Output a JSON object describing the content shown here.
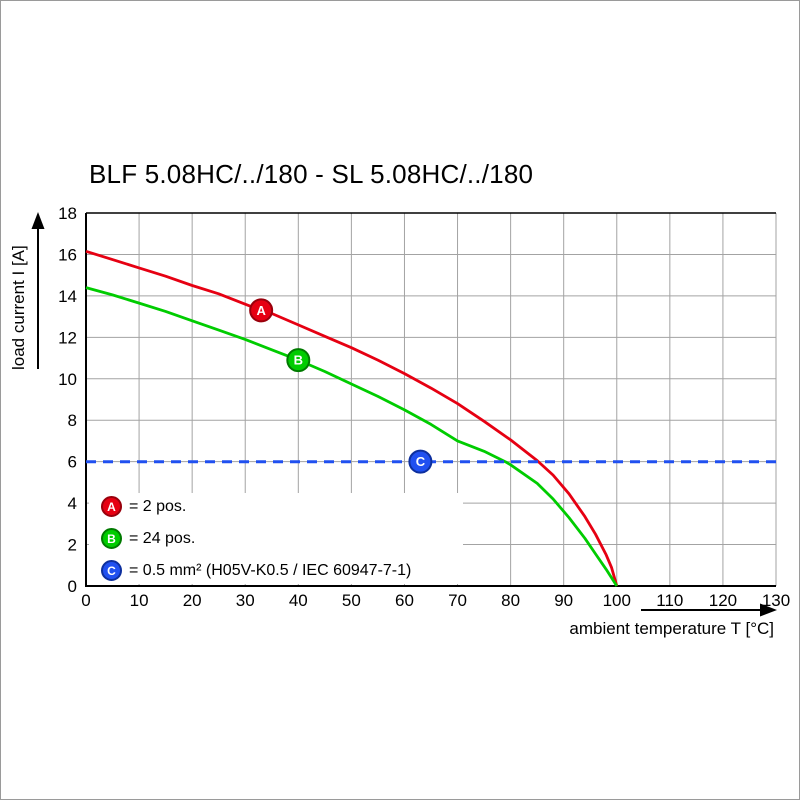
{
  "frame_border_color": "#9a9a9a",
  "chart_data": {
    "type": "line",
    "title": "BLF 5.08HC/../180 - SL 5.08HC/../180",
    "xlabel": "ambient temperature T [°C]",
    "ylabel": "load current I [A]",
    "xlim": [
      0,
      130
    ],
    "ylim": [
      0,
      18
    ],
    "xticks": [
      0,
      10,
      20,
      30,
      40,
      50,
      60,
      70,
      80,
      90,
      100,
      110,
      120,
      130
    ],
    "yticks": [
      0,
      2,
      4,
      6,
      8,
      10,
      12,
      14,
      16,
      18
    ],
    "grid": true,
    "grid_color": "#a3a3a3",
    "legend_position": "inside-bottom-left",
    "series": [
      {
        "name": "A",
        "legend": "= 2 pos.",
        "color": "#e60012",
        "edge": "#99000c",
        "marker_at": [
          33,
          13.3
        ],
        "points": [
          [
            0,
            16.15
          ],
          [
            5,
            15.75
          ],
          [
            10,
            15.35
          ],
          [
            15,
            14.95
          ],
          [
            20,
            14.5
          ],
          [
            25,
            14.1
          ],
          [
            30,
            13.6
          ],
          [
            33,
            13.3
          ],
          [
            35,
            13.15
          ],
          [
            40,
            12.6
          ],
          [
            45,
            12.05
          ],
          [
            50,
            11.5
          ],
          [
            55,
            10.9
          ],
          [
            60,
            10.25
          ],
          [
            65,
            9.55
          ],
          [
            70,
            8.8
          ],
          [
            75,
            7.95
          ],
          [
            80,
            7.05
          ],
          [
            85,
            6.05
          ],
          [
            88,
            5.35
          ],
          [
            91,
            4.45
          ],
          [
            94,
            3.35
          ],
          [
            96,
            2.5
          ],
          [
            98,
            1.5
          ],
          [
            99,
            0.9
          ],
          [
            100,
            0
          ]
        ]
      },
      {
        "name": "B",
        "legend": "= 24 pos.",
        "color": "#00cc00",
        "edge": "#007a00",
        "marker_at": [
          40,
          10.9
        ],
        "points": [
          [
            0,
            14.4
          ],
          [
            5,
            14.05
          ],
          [
            10,
            13.65
          ],
          [
            15,
            13.25
          ],
          [
            20,
            12.8
          ],
          [
            25,
            12.35
          ],
          [
            30,
            11.9
          ],
          [
            35,
            11.4
          ],
          [
            40,
            10.9
          ],
          [
            45,
            10.35
          ],
          [
            50,
            9.75
          ],
          [
            55,
            9.15
          ],
          [
            60,
            8.5
          ],
          [
            65,
            7.8
          ],
          [
            70,
            7.0
          ],
          [
            75,
            6.5
          ],
          [
            79,
            6.0
          ],
          [
            80,
            5.85
          ],
          [
            85,
            4.95
          ],
          [
            88,
            4.2
          ],
          [
            91,
            3.3
          ],
          [
            94,
            2.3
          ],
          [
            96,
            1.55
          ],
          [
            98,
            0.8
          ],
          [
            100,
            0
          ]
        ]
      },
      {
        "name": "C",
        "legend": "= 0.5 mm² (H05V-K0.5 / IEC 60947-7-1)",
        "color": "#2050f0",
        "edge": "#0d2f9e",
        "dashed": true,
        "marker_at": [
          63,
          6
        ],
        "points": [
          [
            0,
            6
          ],
          [
            130,
            6
          ]
        ]
      }
    ]
  }
}
